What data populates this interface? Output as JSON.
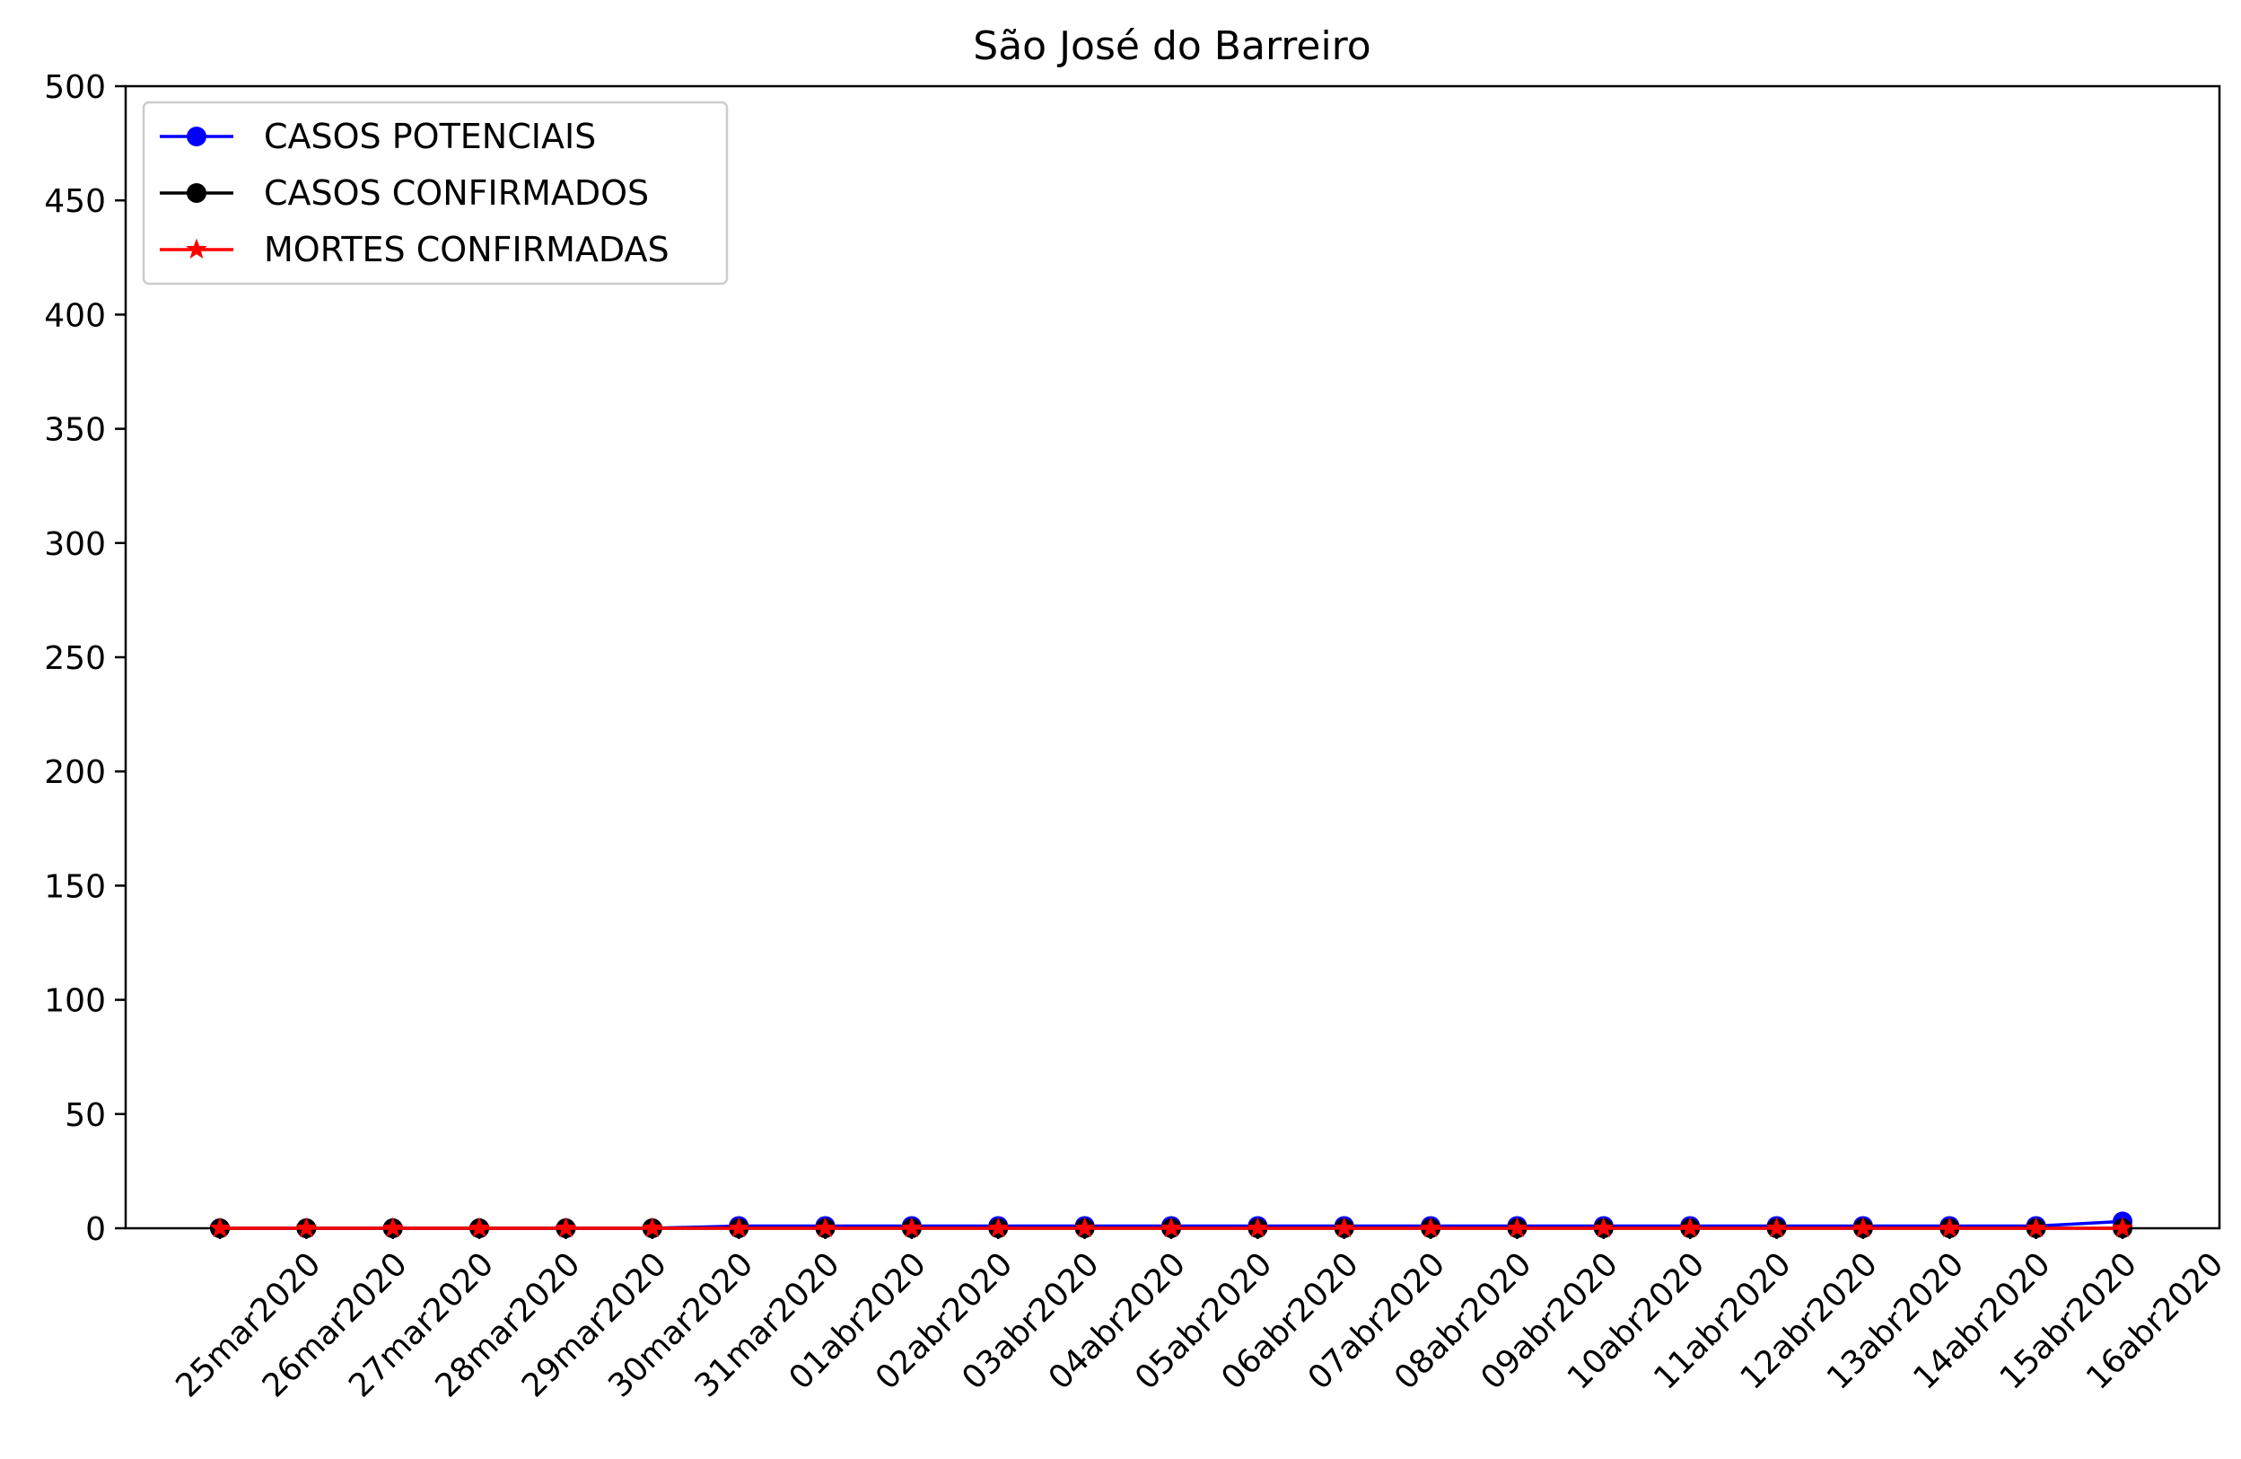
{
  "chart_data": {
    "type": "line",
    "title": "São José do Barreiro",
    "xlabel": "",
    "ylabel": "",
    "ylim": [
      0,
      500
    ],
    "yticks": [
      0,
      50,
      100,
      150,
      200,
      250,
      300,
      350,
      400,
      450,
      500
    ],
    "grid": false,
    "legend_position": "top-left",
    "categories": [
      "25mar2020",
      "26mar2020",
      "27mar2020",
      "28mar2020",
      "29mar2020",
      "30mar2020",
      "31mar2020",
      "01abr2020",
      "02abr2020",
      "03abr2020",
      "04abr2020",
      "05abr2020",
      "06abr2020",
      "07abr2020",
      "08abr2020",
      "09abr2020",
      "10abr2020",
      "11abr2020",
      "12abr2020",
      "13abr2020",
      "14abr2020",
      "15abr2020",
      "16abr2020"
    ],
    "series": [
      {
        "name": "CASOS POTENCIAIS",
        "color": "#0000ff",
        "marker": "circle",
        "values": [
          0,
          0,
          0,
          0,
          0,
          0,
          1,
          1,
          1,
          1,
          1,
          1,
          1,
          1,
          1,
          1,
          1,
          1,
          1,
          1,
          1,
          1,
          3
        ]
      },
      {
        "name": "CASOS CONFIRMADOS",
        "color": "#000000",
        "marker": "circle",
        "values": [
          0,
          0,
          0,
          0,
          0,
          0,
          0,
          0,
          0,
          0,
          0,
          0,
          0,
          0,
          0,
          0,
          0,
          0,
          0,
          0,
          0,
          0,
          0
        ]
      },
      {
        "name": "MORTES CONFIRMADAS",
        "color": "#ff0000",
        "marker": "star",
        "values": [
          0,
          0,
          0,
          0,
          0,
          0,
          0,
          0,
          0,
          0,
          0,
          0,
          0,
          0,
          0,
          0,
          0,
          0,
          0,
          0,
          0,
          0,
          0
        ]
      }
    ]
  }
}
